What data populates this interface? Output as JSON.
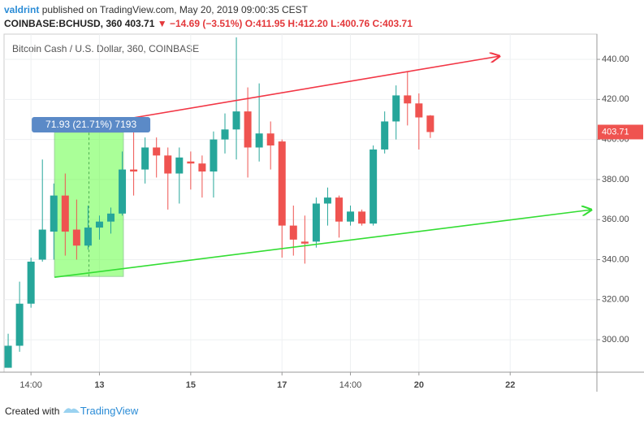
{
  "header": {
    "author": "valdrint",
    "published": "published on TradingView.com, May 20, 2019 09:00:35 CEST",
    "symbol": "COINBASE:BCHUSD, 360",
    "price": "403.71",
    "change": "▼ −14.69 (−3.51%)",
    "ohlc": [
      "O:411.95",
      "H:412.20",
      "L:400.76",
      "C:403.71"
    ]
  },
  "chart_data": {
    "type": "candlestick",
    "title": "Bitcoin Cash / U.S. Dollar, 360, COINBASE",
    "x": [
      0,
      1,
      2,
      3,
      4,
      5,
      6,
      7,
      8,
      9,
      10,
      11,
      12,
      13,
      14,
      15,
      16,
      17,
      18,
      19,
      20,
      21,
      22,
      23,
      24,
      25,
      26,
      27,
      28,
      29,
      30,
      31,
      32,
      33,
      34,
      35,
      36,
      37
    ],
    "open": [
      286,
      297,
      318,
      340,
      354,
      372,
      355,
      347,
      356,
      359,
      363,
      385,
      385,
      396,
      392,
      383,
      389,
      388,
      384,
      400,
      405,
      414,
      396,
      403,
      399,
      357,
      349,
      349,
      368,
      371,
      359,
      364,
      358,
      395,
      409,
      422,
      418,
      411.95
    ],
    "high": [
      303,
      329,
      341,
      390,
      378,
      383,
      370,
      367,
      362,
      366,
      394,
      404,
      401,
      401,
      396,
      396,
      394,
      392,
      404,
      413,
      451,
      426,
      428,
      409,
      400,
      367,
      362,
      371,
      376,
      372,
      367,
      365,
      397,
      414,
      427,
      434,
      423,
      412.2
    ],
    "low": [
      286,
      294,
      316,
      339,
      340,
      342,
      340,
      345,
      350,
      353,
      362,
      372,
      378,
      381,
      365,
      368,
      375,
      371,
      371,
      393,
      390,
      381,
      389,
      385,
      341,
      342,
      338,
      346,
      357,
      351,
      357,
      357,
      357,
      393,
      400,
      407,
      395,
      400.76
    ],
    "close": [
      297,
      318,
      339,
      355,
      372,
      354,
      347,
      356,
      359,
      363,
      385,
      384,
      396,
      392,
      383,
      391,
      388,
      384,
      400,
      405,
      414,
      396,
      403,
      397,
      357,
      350,
      348,
      368,
      371,
      359,
      364,
      358,
      395,
      409,
      422,
      418,
      411,
      403.71
    ],
    "up_color": "#26a69a",
    "down_color": "#ef5350",
    "xlim": [
      -0.36,
      51.6
    ],
    "ylim": [
      283.8,
      452.6
    ],
    "xticks": [
      {
        "value": 2,
        "label": "14:00"
      },
      {
        "value": 8,
        "label": "13"
      },
      {
        "value": 16,
        "label": "15"
      },
      {
        "value": 24,
        "label": "17"
      },
      {
        "value": 30,
        "label": "14:00"
      },
      {
        "value": 36,
        "label": "20"
      },
      {
        "value": 44,
        "label": "22"
      }
    ],
    "yticks": [
      {
        "value": 300,
        "label": "300.00"
      },
      {
        "value": 320,
        "label": "320.00"
      },
      {
        "value": 340,
        "label": "340.00"
      },
      {
        "value": 360,
        "label": "360.00"
      },
      {
        "value": 380,
        "label": "380.00"
      },
      {
        "value": 400,
        "label": "400.00"
      },
      {
        "value": 420,
        "label": "420.00"
      },
      {
        "value": 440,
        "label": "440.00"
      }
    ],
    "grid": true,
    "trendlines": [
      {
        "color": "#f23645",
        "x": [
          10.1,
          43.06
        ],
        "y": [
          410,
          441.6
        ]
      },
      {
        "color": "#33dd33",
        "x": [
          4.06,
          51.1
        ],
        "y": [
          331.2,
          364.9
        ]
      }
    ],
    "measure": {
      "x": [
        4.06,
        10.1
      ],
      "y": [
        331.6,
        403.5
      ],
      "label": "71.93 (21.71%) 7193",
      "color": "#4caf50"
    }
  },
  "footer": {
    "created": "Created with",
    "brand": "TradingView"
  }
}
